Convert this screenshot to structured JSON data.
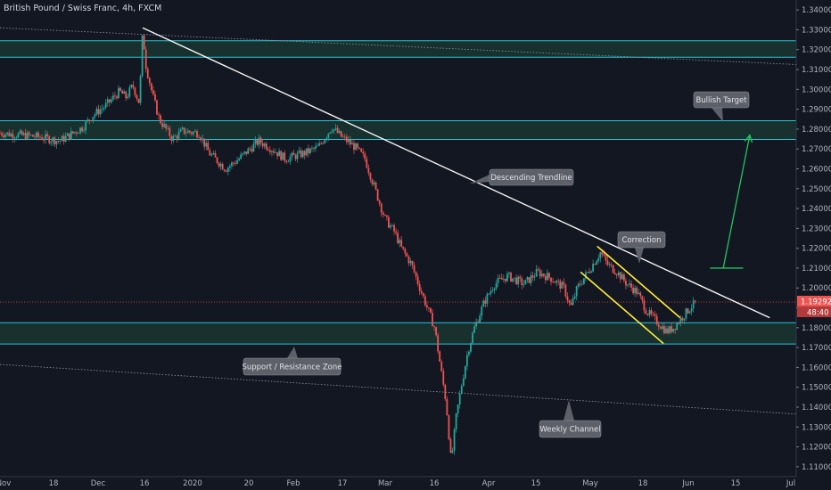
{
  "header": {
    "symbol_line": "British Pound / Swiss Franc, 4h, FXCM"
  },
  "colors": {
    "background": "#131722",
    "candle_up": "#26a69a",
    "candle_down": "#ef5350",
    "zone_line": "#26c6da",
    "zone_fill": "#1b3a33",
    "trendline": "#f5f5f5",
    "channel": "#ffeb3b",
    "target_arrow": "#22c55e",
    "price_line": "#ef5350",
    "callout_fill": "#5d6068"
  },
  "price_labels": {
    "current_price": "1.19292",
    "countdown": "48:40"
  },
  "annotations": [
    {
      "id": "bullish-target",
      "text": "Bullish Target"
    },
    {
      "id": "descending-trendline",
      "text": "Descending Trendline"
    },
    {
      "id": "correction",
      "text": "Correction"
    },
    {
      "id": "support-resistance",
      "text": "Support / Resistance Zone"
    },
    {
      "id": "weekly-channel",
      "text": "Weekly Channel"
    }
  ],
  "chart_data": {
    "type": "candlestick",
    "ylim": [
      1.105,
      1.345
    ],
    "y_ticks": [
      "1.34000",
      "1.33000",
      "1.32000",
      "1.31000",
      "1.30000",
      "1.29000",
      "1.28000",
      "1.27000",
      "1.26000",
      "1.25000",
      "1.24000",
      "1.23000",
      "1.22000",
      "1.21000",
      "1.20000",
      "1.19000",
      "1.18000",
      "1.17000",
      "1.16000",
      "1.15000",
      "1.14000",
      "1.13000",
      "1.12000",
      "1.11000"
    ],
    "x_ticks": [
      "Nov",
      "18",
      "Dec",
      "16",
      "2020",
      "20",
      "Feb",
      "17",
      "Mar",
      "16",
      "Apr",
      "15",
      "May",
      "18",
      "Jun",
      "15",
      "Jul"
    ],
    "price_path": [
      [
        0,
        1.278
      ],
      [
        12,
        1.276
      ],
      [
        18,
        1.274
      ],
      [
        25,
        1.281
      ],
      [
        28,
        1.287
      ],
      [
        32,
        1.292
      ],
      [
        36,
        1.299
      ],
      [
        38,
        1.296
      ],
      [
        40,
        1.302
      ],
      [
        42,
        1.293
      ],
      [
        43,
        1.329
      ],
      [
        44,
        1.312
      ],
      [
        46,
        1.297
      ],
      [
        48,
        1.285
      ],
      [
        52,
        1.275
      ],
      [
        55,
        1.279
      ],
      [
        60,
        1.278
      ],
      [
        63,
        1.268
      ],
      [
        68,
        1.26
      ],
      [
        72,
        1.265
      ],
      [
        78,
        1.274
      ],
      [
        82,
        1.27
      ],
      [
        86,
        1.265
      ],
      [
        92,
        1.268
      ],
      [
        96,
        1.271
      ],
      [
        100,
        1.281
      ],
      [
        103,
        1.276
      ],
      [
        107,
        1.271
      ],
      [
        110,
        1.265
      ],
      [
        113,
        1.25
      ],
      [
        116,
        1.235
      ],
      [
        119,
        1.228
      ],
      [
        121,
        1.22
      ],
      [
        124,
        1.212
      ],
      [
        127,
        1.198
      ],
      [
        131,
        1.18
      ],
      [
        133,
        1.158
      ],
      [
        134.5,
        1.142
      ],
      [
        136,
        1.112
      ],
      [
        137.5,
        1.135
      ],
      [
        139,
        1.15
      ],
      [
        141,
        1.168
      ],
      [
        143,
        1.18
      ],
      [
        146,
        1.193
      ],
      [
        149,
        1.202
      ],
      [
        153,
        1.206
      ],
      [
        158,
        1.202
      ],
      [
        162,
        1.208
      ],
      [
        166,
        1.205
      ],
      [
        170,
        1.2
      ],
      [
        172,
        1.19
      ],
      [
        174,
        1.2
      ],
      [
        178,
        1.21
      ],
      [
        181,
        1.218
      ],
      [
        183,
        1.212
      ],
      [
        186,
        1.208
      ],
      [
        189,
        1.202
      ],
      [
        192,
        1.198
      ],
      [
        195,
        1.188
      ],
      [
        198,
        1.183
      ],
      [
        201,
        1.178
      ],
      [
        203,
        1.18
      ],
      [
        206,
        1.186
      ],
      [
        208,
        1.19
      ],
      [
        210,
        1.193
      ]
    ],
    "horizontal_levels": [
      1.3245,
      1.3162,
      1.2842,
      1.2748,
      1.1825,
      1.1718
    ],
    "zones": [
      {
        "top": 1.3245,
        "bottom": 1.3162
      },
      {
        "top": 1.2842,
        "bottom": 1.2748
      },
      {
        "top": 1.1825,
        "bottom": 1.1718
      }
    ],
    "descending_trendline": {
      "from": [
        43,
        1.331
      ],
      "to": [
        232,
        1.185
      ]
    },
    "weekly_channel": {
      "upper": {
        "from": [
          0,
          1.331
        ],
        "to": [
          240,
          1.3125
        ]
      },
      "lower": {
        "from": [
          0,
          1.1615
        ],
        "to": [
          240,
          1.1365
        ]
      }
    },
    "correction_channel": {
      "upper": {
        "from": [
          180,
          1.221
        ],
        "to": [
          205,
          1.185
        ]
      },
      "lower": {
        "from": [
          175,
          1.208
        ],
        "to": [
          200,
          1.172
        ]
      }
    },
    "target_arrow": {
      "from": [
        218,
        1.21
      ],
      "to": [
        226,
        1.277
      ],
      "base_level": 1.21,
      "base_from": 214,
      "base_to": 224
    },
    "current_price": 1.19292
  }
}
